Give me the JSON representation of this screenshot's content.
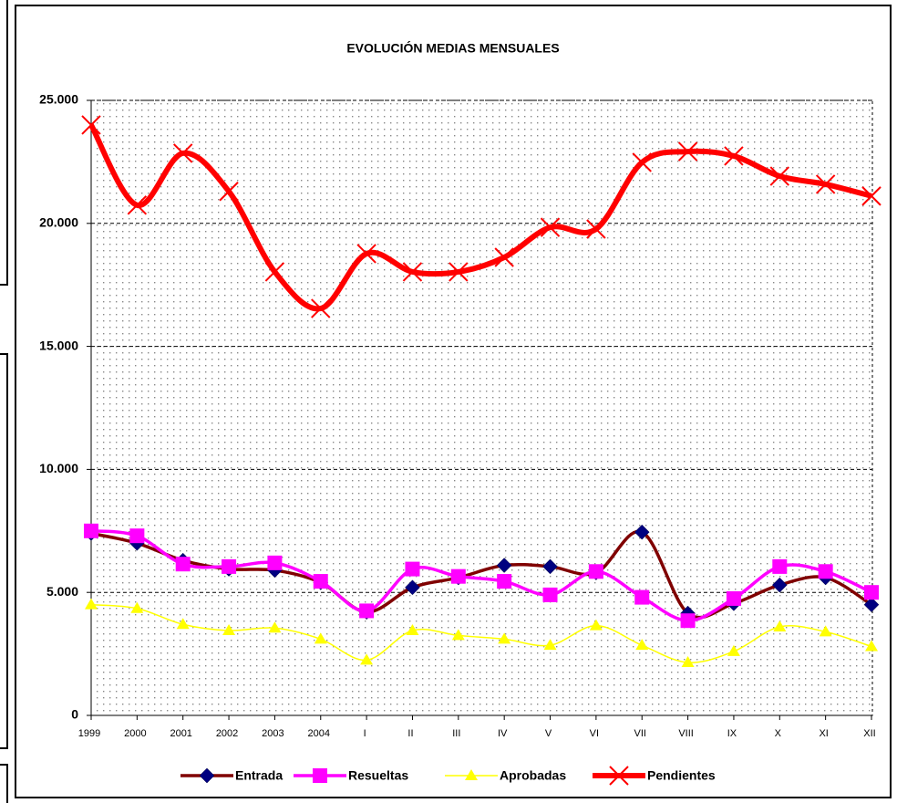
{
  "chart_data": {
    "type": "line",
    "title": "EVOLUCIÓN MEDIAS MENSUALES",
    "categories": [
      "1999",
      "2000",
      "2001",
      "2002",
      "2003",
      "2004",
      "I",
      "II",
      "III",
      "IV",
      "V",
      "VI",
      "VII",
      "VIII",
      "IX",
      "X",
      "XI",
      "XII"
    ],
    "series": [
      {
        "name": "Entrada",
        "color": "#800000",
        "marker_color": "#000080",
        "values": [
          7400,
          7000,
          6300,
          5950,
          5900,
          5400,
          4200,
          5200,
          5600,
          6100,
          6050,
          5800,
          7450,
          4150,
          4550,
          5300,
          5600,
          4500
        ]
      },
      {
        "name": "Resueltas",
        "color": "#ff00ff",
        "marker_color": "#ff00ff",
        "values": [
          7500,
          7300,
          6150,
          6050,
          6200,
          5450,
          4250,
          5950,
          5650,
          5450,
          4900,
          5850,
          4800,
          3850,
          4750,
          6050,
          5850,
          5000
        ]
      },
      {
        "name": "Aprobadas",
        "color": "#ffff00",
        "marker_color": "#ffff00",
        "values": [
          4500,
          4350,
          3700,
          3450,
          3550,
          3100,
          2250,
          3450,
          3250,
          3100,
          2850,
          3650,
          2850,
          2150,
          2600,
          3600,
          3400,
          2800
        ]
      },
      {
        "name": "Pendientes",
        "color": "#ff0000",
        "marker_color": "#ff0000",
        "values": [
          24000,
          20740,
          22850,
          21300,
          18030,
          16540,
          18770,
          18030,
          18030,
          18620,
          19840,
          19770,
          22480,
          22920,
          22740,
          21920,
          21590,
          21110
        ]
      }
    ],
    "ylim": [
      0,
      25000
    ],
    "yticks": [
      0,
      {
        "value": 5000,
        "label": "5.000"
      },
      {
        "value": 10000,
        "label": "10.000"
      },
      {
        "value": 15000,
        "label": "15.000"
      },
      {
        "value": 20000,
        "label": "20.000"
      },
      {
        "value": 25000,
        "label": "25.000"
      }
    ],
    "grid": true,
    "legend": "bottom"
  }
}
